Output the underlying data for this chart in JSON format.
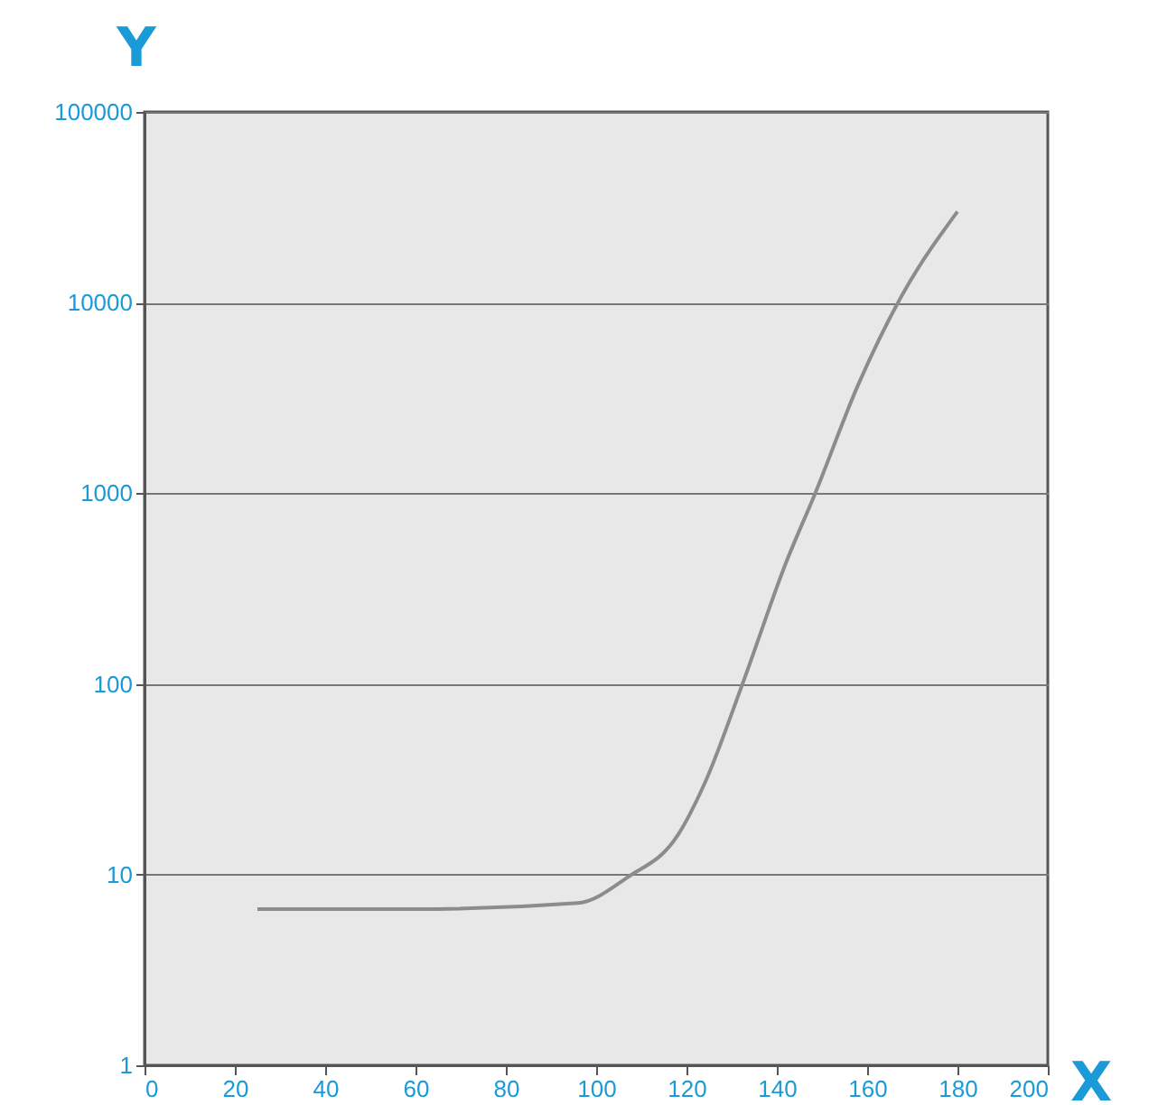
{
  "chart_data": {
    "type": "line",
    "xlabel": "X",
    "ylabel": "Y",
    "log": "y",
    "grid": "y",
    "marker": "none",
    "line_style": "solid",
    "xlim": [
      0,
      200
    ],
    "xticks": [
      0,
      20,
      40,
      60,
      80,
      100,
      120,
      140,
      160,
      180,
      200
    ],
    "ylim": [
      1,
      100000
    ],
    "yticks": [
      1,
      10,
      100,
      1000,
      10000,
      100000
    ],
    "series": [
      {
        "color": "#8c8c8c",
        "x": [
          25,
          60,
          96,
          107,
          118,
          124,
          132.6,
          142,
          148.5,
          158,
          167.5,
          180
        ],
        "values": [
          6.6,
          6.6,
          7.1,
          9.7,
          16,
          30,
          103,
          430,
          1000,
          3700,
          10700,
          30000
        ]
      }
    ]
  }
}
